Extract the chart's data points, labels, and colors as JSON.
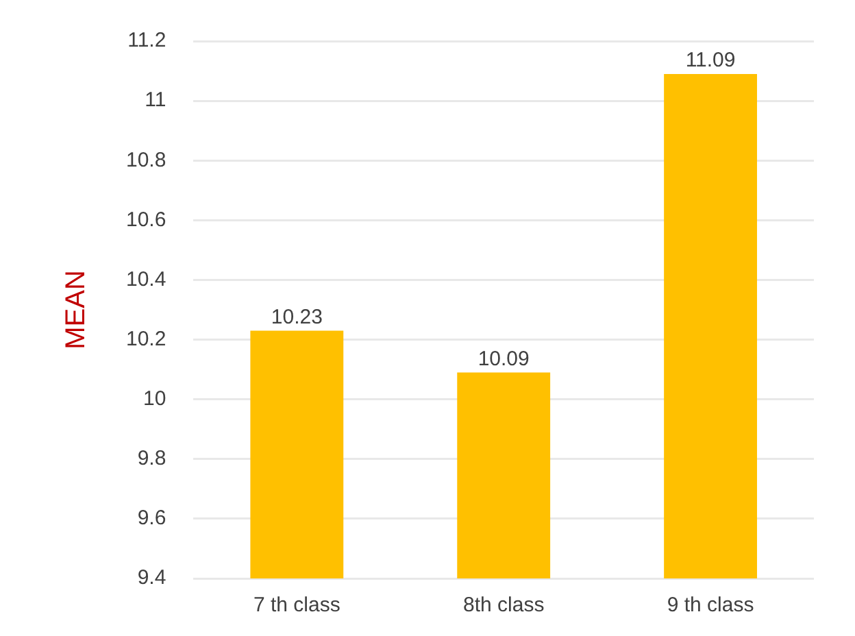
{
  "chart_data": {
    "type": "bar",
    "ylabel": "MEAN",
    "categories": [
      "7 th class",
      "8th class",
      "9 th class"
    ],
    "values": [
      10.23,
      10.09,
      11.09
    ],
    "color": "#ffc000",
    "ylim": [
      9.4,
      11.2
    ],
    "yticks": [
      9.4,
      9.6,
      9.8,
      10,
      10.2,
      10.4,
      10.6,
      10.8,
      11,
      11.2
    ],
    "grid": "y",
    "data_labels": true
  }
}
